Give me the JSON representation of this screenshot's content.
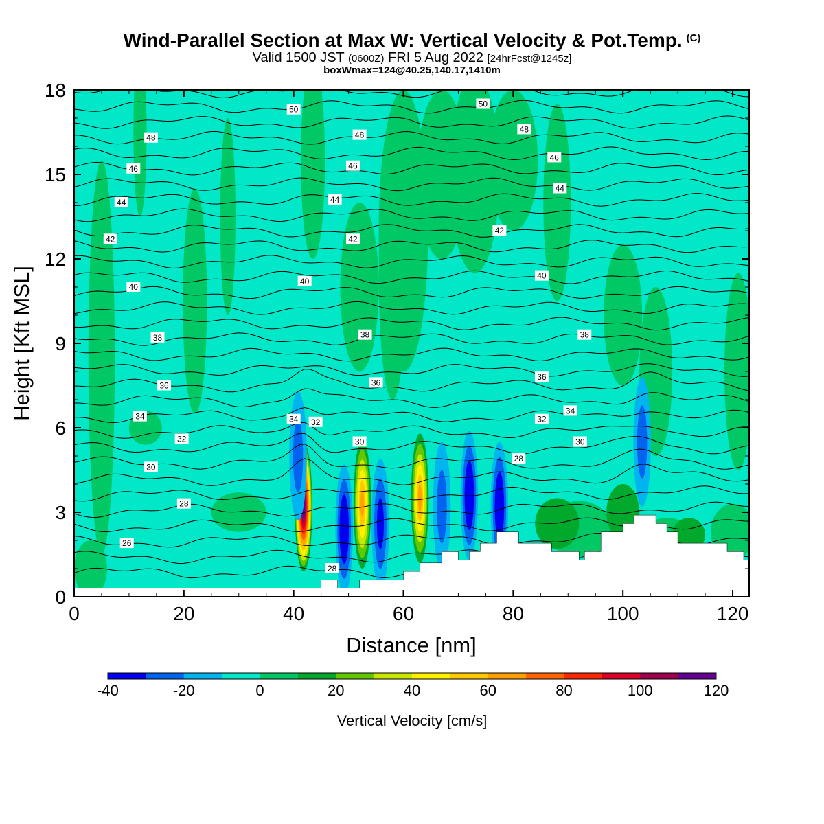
{
  "header": {
    "title": "Wind-Parallel Section at Max W: Vertical Velocity & Pot.Temp.",
    "copyright": "(C)",
    "valid_prefix": "Valid 1500 JST",
    "valid_utc": "(0600Z)",
    "valid_date": "FRI 5 Aug 2022",
    "forecast": "[24hrFcst@1245z]",
    "boxwmax": "boxWmax=124@40.25,140.17,1410m"
  },
  "colors": {
    "background_field": "#00e8c8",
    "green_light": "#00c864",
    "green_dark": "#00a82c",
    "terrain": "#ffffff",
    "contour": "#000000"
  },
  "chart_data": {
    "type": "heatmap",
    "xlabel": "Distance [nm]",
    "ylabel": "Height [Kft MSL]",
    "xlim": [
      0,
      123
    ],
    "ylim": [
      0,
      18
    ],
    "x_ticks": [
      "0",
      "20",
      "40",
      "60",
      "80",
      "100",
      "120"
    ],
    "x_tick_values": [
      0,
      20,
      40,
      60,
      80,
      100,
      120
    ],
    "y_ticks": [
      "0",
      "3",
      "6",
      "9",
      "12",
      "15",
      "18"
    ],
    "y_tick_values": [
      0,
      3,
      6,
      9,
      12,
      15,
      18
    ],
    "colorbar": {
      "title": "Vertical Velocity [cm/s]",
      "min": -40,
      "max": 120,
      "labels": [
        "-40",
        "-20",
        "0",
        "20",
        "40",
        "60",
        "80",
        "100",
        "120"
      ],
      "label_values": [
        -40,
        -20,
        0,
        20,
        40,
        60,
        80,
        100,
        120
      ],
      "colors": [
        "#0000f0",
        "#0064f0",
        "#00b4f0",
        "#00e8c8",
        "#00c864",
        "#00a82c",
        "#64c800",
        "#c8e600",
        "#fff000",
        "#ffc800",
        "#ffa000",
        "#ff6400",
        "#ff2800",
        "#dc0028",
        "#a00050",
        "#640096"
      ]
    },
    "terrain": [
      [
        0,
        0.3
      ],
      [
        45,
        0.3
      ],
      [
        45,
        0.6
      ],
      [
        48,
        0.6
      ],
      [
        48,
        0.3
      ],
      [
        52,
        0.3
      ],
      [
        52,
        0.6
      ],
      [
        60,
        0.6
      ],
      [
        60,
        0.9
      ],
      [
        63,
        0.9
      ],
      [
        63,
        1.2
      ],
      [
        67,
        1.2
      ],
      [
        67,
        1.6
      ],
      [
        70,
        1.6
      ],
      [
        70,
        1.3
      ],
      [
        72,
        1.3
      ],
      [
        72,
        1.6
      ],
      [
        74,
        1.6
      ],
      [
        74,
        1.9
      ],
      [
        77,
        1.9
      ],
      [
        77,
        2.3
      ],
      [
        81,
        2.3
      ],
      [
        81,
        1.9
      ],
      [
        87,
        1.9
      ],
      [
        87,
        1.6
      ],
      [
        92,
        1.6
      ],
      [
        92,
        1.3
      ],
      [
        93,
        1.3
      ],
      [
        93,
        1.6
      ],
      [
        96,
        1.6
      ],
      [
        96,
        2.3
      ],
      [
        100,
        2.3
      ],
      [
        100,
        2.6
      ],
      [
        102,
        2.6
      ],
      [
        102,
        2.9
      ],
      [
        106,
        2.9
      ],
      [
        106,
        2.6
      ],
      [
        108,
        2.6
      ],
      [
        108,
        2.3
      ],
      [
        110,
        2.3
      ],
      [
        110,
        1.9
      ],
      [
        119,
        1.9
      ],
      [
        119,
        1.6
      ],
      [
        122,
        1.6
      ],
      [
        122,
        1.3
      ],
      [
        123,
        1.3
      ],
      [
        123,
        0
      ]
    ],
    "updrafts": [
      {
        "x": 41.8,
        "z": 3.2,
        "peak": 120
      },
      {
        "x": 52.5,
        "z": 3.3,
        "peak": 60
      },
      {
        "x": 63.0,
        "z": 3.5,
        "peak": 60
      },
      {
        "x": 103.5,
        "z": 5.5,
        "peak": -20
      }
    ],
    "downdrafts": [
      {
        "x": 49.2,
        "z": 2.4,
        "peak": -40
      },
      {
        "x": 55.8,
        "z": 2.6,
        "peak": -30
      },
      {
        "x": 67.0,
        "z": 3.2,
        "peak": -20
      },
      {
        "x": 72.0,
        "z": 3.6,
        "peak": -40
      },
      {
        "x": 77.5,
        "z": 3.2,
        "peak": -40
      },
      {
        "x": 40.8,
        "z": 5.0,
        "peak": -20
      }
    ],
    "contour_labels": [
      {
        "text": "50",
        "x": 40.0,
        "z": 17.3
      },
      {
        "text": "50",
        "x": 74.5,
        "z": 17.5
      },
      {
        "text": "48",
        "x": 14.0,
        "z": 16.3
      },
      {
        "text": "48",
        "x": 52.0,
        "z": 16.4
      },
      {
        "text": "48",
        "x": 82.0,
        "z": 16.6
      },
      {
        "text": "46",
        "x": 10.8,
        "z": 15.2
      },
      {
        "text": "46",
        "x": 50.8,
        "z": 15.3
      },
      {
        "text": "46",
        "x": 87.5,
        "z": 15.6
      },
      {
        "text": "44",
        "x": 8.6,
        "z": 14.0
      },
      {
        "text": "44",
        "x": 47.5,
        "z": 14.1
      },
      {
        "text": "44",
        "x": 88.5,
        "z": 14.5
      },
      {
        "text": "42",
        "x": 6.6,
        "z": 12.7
      },
      {
        "text": "42",
        "x": 50.8,
        "z": 12.7
      },
      {
        "text": "42",
        "x": 77.5,
        "z": 13.0
      },
      {
        "text": "40",
        "x": 10.8,
        "z": 11.0
      },
      {
        "text": "40",
        "x": 42.0,
        "z": 11.2
      },
      {
        "text": "40",
        "x": 85.2,
        "z": 11.4
      },
      {
        "text": "38",
        "x": 15.2,
        "z": 9.2
      },
      {
        "text": "38",
        "x": 53.0,
        "z": 9.3
      },
      {
        "text": "38",
        "x": 93.0,
        "z": 9.3
      },
      {
        "text": "36",
        "x": 16.4,
        "z": 7.5
      },
      {
        "text": "36",
        "x": 55.0,
        "z": 7.6
      },
      {
        "text": "36",
        "x": 85.2,
        "z": 7.8
      },
      {
        "text": "34",
        "x": 12.0,
        "z": 6.4
      },
      {
        "text": "34",
        "x": 40.0,
        "z": 6.3
      },
      {
        "text": "34",
        "x": 90.4,
        "z": 6.6
      },
      {
        "text": "32",
        "x": 19.6,
        "z": 5.6
      },
      {
        "text": "32",
        "x": 44.0,
        "z": 6.2
      },
      {
        "text": "32",
        "x": 85.2,
        "z": 6.3
      },
      {
        "text": "30",
        "x": 14.0,
        "z": 4.6
      },
      {
        "text": "30",
        "x": 52.0,
        "z": 5.5
      },
      {
        "text": "30",
        "x": 92.2,
        "z": 5.5
      },
      {
        "text": "28",
        "x": 20.0,
        "z": 3.3
      },
      {
        "text": "28",
        "x": 47.0,
        "z": 1.0
      },
      {
        "text": "28",
        "x": 81.0,
        "z": 4.9
      },
      {
        "text": "26",
        "x": 9.6,
        "z": 1.9
      }
    ]
  }
}
